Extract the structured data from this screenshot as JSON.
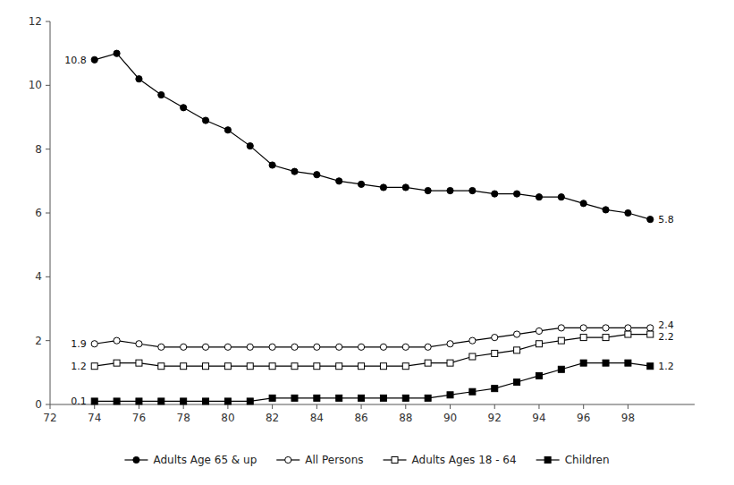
{
  "chart_data": {
    "type": "line",
    "x": [
      1974,
      1975,
      1976,
      1977,
      1978,
      1979,
      1980,
      1981,
      1982,
      1983,
      1984,
      1985,
      1986,
      1987,
      1988,
      1989,
      1990,
      1991,
      1992,
      1993,
      1994,
      1995,
      1996,
      1997,
      1998,
      1999
    ],
    "series": [
      {
        "name": "Adults Age 65 & up",
        "color": "#000000",
        "marker": "circle",
        "values": [
          10.8,
          11.0,
          10.2,
          9.7,
          9.3,
          8.9,
          8.6,
          8.1,
          7.5,
          7.3,
          7.2,
          7.0,
          6.9,
          6.8,
          6.8,
          6.7,
          6.7,
          6.7,
          6.6,
          6.6,
          6.5,
          6.5,
          6.3,
          6.1,
          6.0,
          5.8
        ]
      },
      {
        "name": "All Persons",
        "color": "#000000",
        "marker": "circle-open",
        "values": [
          1.9,
          2.0,
          1.9,
          1.8,
          1.8,
          1.8,
          1.8,
          1.8,
          1.8,
          1.8,
          1.8,
          1.8,
          1.8,
          1.8,
          1.8,
          1.8,
          1.9,
          2.0,
          2.1,
          2.2,
          2.3,
          2.4,
          2.4,
          2.4,
          2.4,
          2.4
        ]
      },
      {
        "name": "Adults Ages 18 - 64",
        "color": "#000000",
        "marker": "square-open",
        "values": [
          1.2,
          1.3,
          1.3,
          1.2,
          1.2,
          1.2,
          1.2,
          1.2,
          1.2,
          1.2,
          1.2,
          1.2,
          1.2,
          1.2,
          1.2,
          1.3,
          1.3,
          1.5,
          1.6,
          1.7,
          1.9,
          2.0,
          2.1,
          2.1,
          2.2,
          2.2
        ]
      },
      {
        "name": "Children",
        "color": "#000000",
        "marker": "square",
        "values": [
          0.1,
          0.1,
          0.1,
          0.1,
          0.1,
          0.1,
          0.1,
          0.1,
          0.2,
          0.2,
          0.2,
          0.2,
          0.2,
          0.2,
          0.2,
          0.2,
          0.3,
          0.4,
          0.5,
          0.7,
          0.9,
          1.1,
          1.3,
          1.3,
          1.3,
          1.2
        ]
      }
    ],
    "annotations": [
      {
        "text": "10.8",
        "x": 1974,
        "y": 10.8
      },
      {
        "text": "1.9",
        "x": 1974,
        "y": 1.9
      },
      {
        "text": "1.2",
        "x": 1974,
        "y": 1.2
      },
      {
        "text": "0.1",
        "x": 1974,
        "y": 0.1
      },
      {
        "text": "5.8",
        "x": 1999,
        "y": 5.8
      },
      {
        "text": "2.4",
        "x": 1999,
        "y": 2.4
      },
      {
        "text": "2.2",
        "x": 1999,
        "y": 2.2
      },
      {
        "text": "1.2",
        "x": 1999,
        "y": 1.2
      }
    ],
    "xlim": [
      1972,
      2001
    ],
    "ylim": [
      0,
      12
    ],
    "xticks": [
      {
        "value": 1972,
        "label": "72"
      },
      {
        "value": 1974,
        "label": "74"
      },
      {
        "value": 1976,
        "label": "76"
      },
      {
        "value": 1978,
        "label": "78"
      },
      {
        "value": 1980,
        "label": "80"
      },
      {
        "value": 1982,
        "label": "82"
      },
      {
        "value": 1984,
        "label": "84"
      },
      {
        "value": 1986,
        "label": "86"
      },
      {
        "value": 1988,
        "label": "88"
      },
      {
        "value": 1990,
        "label": "90"
      },
      {
        "value": 1992,
        "label": "92"
      },
      {
        "value": 1994,
        "label": "94"
      },
      {
        "value": 1996,
        "label": "96"
      },
      {
        "value": 1998,
        "label": "98"
      }
    ],
    "yticks": [
      0,
      2,
      4,
      6,
      8,
      10,
      12
    ],
    "grid": false,
    "legend": "bottom"
  }
}
